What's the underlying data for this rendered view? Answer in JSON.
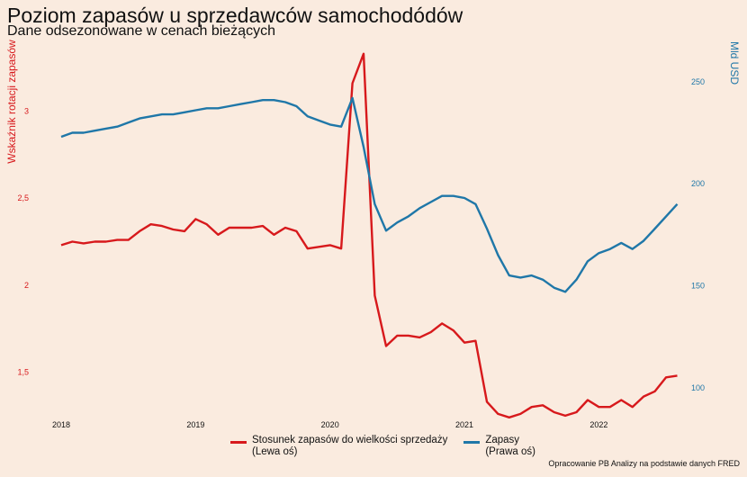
{
  "chart_data": {
    "type": "line",
    "title": "Poziom zapasów u sprzedawców samochodódów",
    "subtitle": "Dane odsezonowane w cenach bieżących",
    "ylabel_left": "Wskaźnik rotacji zapasów",
    "ylabel_right": "Mld USD",
    "x_tick_labels": [
      "2018",
      "2019",
      "2020",
      "2021",
      "2022"
    ],
    "y_left_ticks": [
      {
        "value": 1.5,
        "label": "1,5"
      },
      {
        "value": 2,
        "label": "2"
      },
      {
        "value": 2.5,
        "label": "2,5"
      },
      {
        "value": 3,
        "label": "3"
      }
    ],
    "y_right_ticks": [
      {
        "value": 100,
        "label": "100"
      },
      {
        "value": 150,
        "label": "150"
      },
      {
        "value": 200,
        "label": "200"
      },
      {
        "value": 250,
        "label": "250"
      }
    ],
    "ylim_left": [
      1.27,
      3.38
    ],
    "ylim_right": [
      88,
      268
    ],
    "xlim": [
      2018.0,
      2022.62
    ],
    "grid": false,
    "legend_position": "bottom",
    "series": [
      {
        "name": "Stosunek zapasów do wielkości sprzedaży\n(Lewa oś)",
        "axis": "left",
        "color": "#D7191C",
        "x": [
          2018.0,
          2018.083,
          2018.167,
          2018.25,
          2018.333,
          2018.417,
          2018.5,
          2018.583,
          2018.667,
          2018.75,
          2018.833,
          2018.917,
          2019.0,
          2019.083,
          2019.167,
          2019.25,
          2019.333,
          2019.417,
          2019.5,
          2019.583,
          2019.667,
          2019.75,
          2019.833,
          2019.917,
          2020.0,
          2020.083,
          2020.167,
          2020.25,
          2020.333,
          2020.417,
          2020.5,
          2020.583,
          2020.667,
          2020.75,
          2020.833,
          2020.917,
          2021.0,
          2021.083,
          2021.167,
          2021.25,
          2021.333,
          2021.417,
          2021.5,
          2021.583,
          2021.667,
          2021.75,
          2021.833,
          2021.917,
          2022.0,
          2022.083,
          2022.167,
          2022.25,
          2022.333,
          2022.417,
          2022.5,
          2022.583
        ],
        "values": [
          2.23,
          2.25,
          2.24,
          2.25,
          2.25,
          2.26,
          2.26,
          2.31,
          2.35,
          2.34,
          2.32,
          2.31,
          2.38,
          2.35,
          2.29,
          2.33,
          2.33,
          2.33,
          2.34,
          2.29,
          2.33,
          2.31,
          2.21,
          2.22,
          2.23,
          2.21,
          3.16,
          3.33,
          1.94,
          1.65,
          1.71,
          1.71,
          1.7,
          1.73,
          1.78,
          1.74,
          1.67,
          1.68,
          1.33,
          1.26,
          1.24,
          1.26,
          1.3,
          1.31,
          1.27,
          1.25,
          1.27,
          1.34,
          1.3,
          1.3,
          1.34,
          1.3,
          1.36,
          1.39,
          1.47,
          1.48
        ]
      },
      {
        "name": "Zapasy\n(Prawa oś)",
        "axis": "right",
        "color": "#1F77A8",
        "x": [
          2018.0,
          2018.083,
          2018.167,
          2018.25,
          2018.333,
          2018.417,
          2018.5,
          2018.583,
          2018.667,
          2018.75,
          2018.833,
          2018.917,
          2019.0,
          2019.083,
          2019.167,
          2019.25,
          2019.333,
          2019.417,
          2019.5,
          2019.583,
          2019.667,
          2019.75,
          2019.833,
          2019.917,
          2020.0,
          2020.083,
          2020.167,
          2020.25,
          2020.333,
          2020.417,
          2020.5,
          2020.583,
          2020.667,
          2020.75,
          2020.833,
          2020.917,
          2021.0,
          2021.083,
          2021.167,
          2021.25,
          2021.333,
          2021.417,
          2021.5,
          2021.583,
          2021.667,
          2021.75,
          2021.833,
          2021.917,
          2022.0,
          2022.083,
          2022.167,
          2022.25,
          2022.333,
          2022.417,
          2022.5,
          2022.583
        ],
        "values": [
          223,
          225,
          225,
          226,
          227,
          228,
          230,
          232,
          233,
          234,
          234,
          235,
          236,
          237,
          237,
          238,
          239,
          240,
          241,
          241,
          240,
          238,
          233,
          231,
          229,
          228,
          242,
          218,
          190,
          177,
          181,
          184,
          188,
          191,
          194,
          194,
          193,
          190,
          178,
          165,
          155,
          154,
          155,
          153,
          149,
          147,
          153,
          162,
          166,
          168,
          171,
          168,
          172,
          178,
          184,
          190
        ]
      }
    ]
  },
  "footer": {
    "credit": "Opracowanie PB Analizy na podstawie danych FRED"
  }
}
